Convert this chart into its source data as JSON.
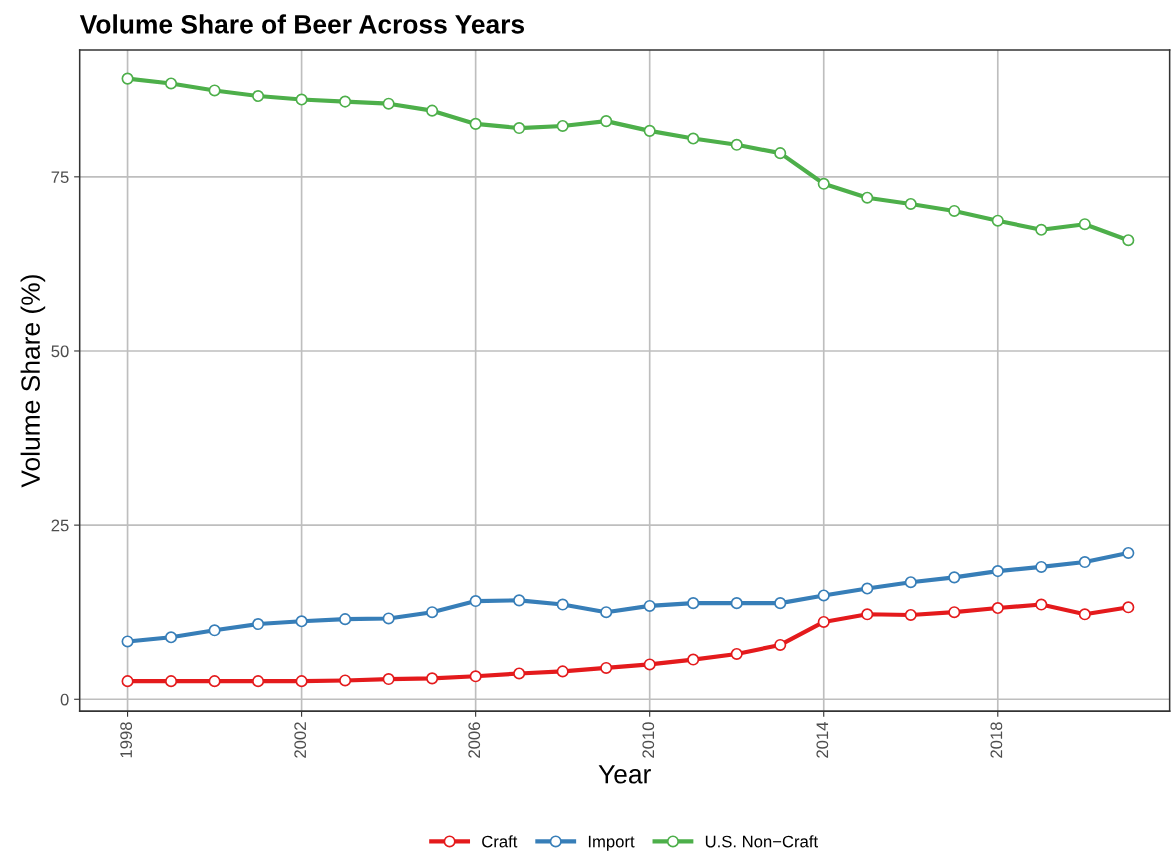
{
  "chart_data": {
    "type": "line",
    "title": "Volume Share of Beer Across Years",
    "xlabel": "Year",
    "ylabel": "Volume Share (%)",
    "x": [
      1998,
      1999,
      2000,
      2001,
      2002,
      2003,
      2004,
      2005,
      2006,
      2007,
      2008,
      2009,
      2010,
      2011,
      2012,
      2013,
      2014,
      2015,
      2016,
      2017,
      2018,
      2019,
      2020,
      2021
    ],
    "series": [
      {
        "name": "Craft",
        "color": "#e41a1c",
        "values": [
          2.6,
          2.6,
          2.6,
          2.6,
          2.6,
          2.7,
          2.9,
          3.0,
          3.3,
          3.7,
          4.0,
          4.5,
          5.0,
          5.7,
          6.5,
          7.8,
          11.1,
          12.2,
          12.1,
          12.5,
          13.1,
          13.6,
          12.2,
          13.2
        ]
      },
      {
        "name": "Import",
        "color": "#377eb8",
        "values": [
          8.3,
          8.9,
          9.9,
          10.8,
          11.2,
          11.5,
          11.6,
          12.5,
          14.1,
          14.2,
          13.6,
          12.5,
          13.4,
          13.8,
          13.8,
          13.8,
          14.9,
          15.9,
          16.8,
          17.5,
          18.4,
          19.0,
          19.7,
          21.0
        ]
      },
      {
        "name": "U.S. Non−Craft",
        "color": "#4daf4a",
        "values": [
          89.1,
          88.4,
          87.4,
          86.6,
          86.1,
          85.8,
          85.5,
          84.5,
          82.6,
          82.0,
          82.3,
          83.0,
          81.6,
          80.5,
          79.6,
          78.4,
          74.0,
          72.0,
          71.1,
          70.1,
          68.7,
          67.4,
          68.2,
          65.9
        ]
      }
    ],
    "xlim": [
      1996.9,
      2021.95
    ],
    "xticks": [
      1998,
      2002,
      2006,
      2010,
      2014,
      2018
    ],
    "ylim": [
      -1.7,
      93.2
    ],
    "yticks": [
      0,
      25,
      50,
      75
    ],
    "grid": true,
    "legend": "bottom",
    "marker": "circle",
    "line_style": "solid"
  }
}
